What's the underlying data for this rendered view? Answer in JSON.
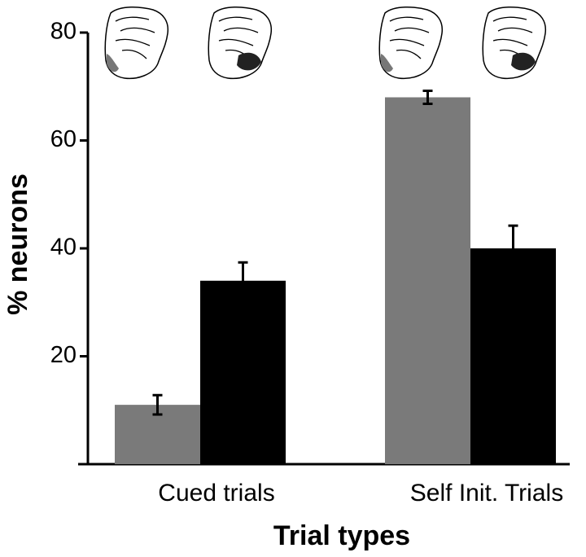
{
  "chart_data": {
    "type": "bar",
    "categories": [
      "Cued trials",
      "Self Init. Trials"
    ],
    "series": [
      {
        "color": "#7a7a7a",
        "values": [
          11,
          68
        ],
        "errors": [
          1.8,
          1.2
        ]
      },
      {
        "color": "#000000",
        "values": [
          34,
          40
        ],
        "errors": [
          3.4,
          4.2
        ]
      }
    ],
    "ylabel": "% neurons",
    "xlabel": "Trial types",
    "ylim": [
      0,
      80
    ],
    "yticks": [
      20,
      40,
      60,
      80
    ]
  }
}
